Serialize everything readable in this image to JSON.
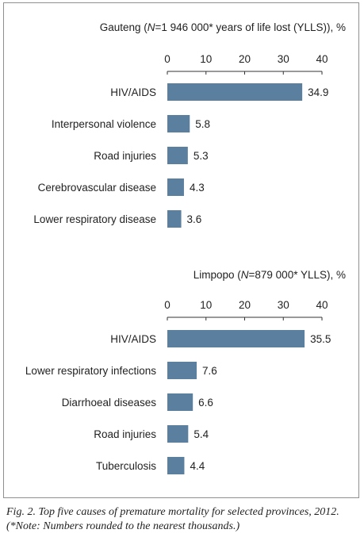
{
  "chart_data": [
    {
      "type": "bar",
      "title_prefix": "Gauteng (",
      "title_n": "N",
      "title_suffix": "=1 946 000* years of life lost (YLLS)), %",
      "xlim": [
        0,
        40
      ],
      "ticks": [
        "0",
        "10",
        "20",
        "30",
        "40"
      ],
      "categories": [
        "HIV/AIDS",
        "Interpersonal violence",
        "Road injuries",
        "Cerebrovascular disease",
        "Lower respiratory disease"
      ],
      "values": [
        34.9,
        5.8,
        5.3,
        4.3,
        3.6
      ],
      "value_labels": [
        "34.9",
        "5.8",
        "5.3",
        "4.3",
        "3.6"
      ]
    },
    {
      "type": "bar",
      "title_prefix": "Limpopo (",
      "title_n": "N",
      "title_suffix": "=879 000* YLLS), %",
      "xlim": [
        0,
        40
      ],
      "ticks": [
        "0",
        "10",
        "20",
        "30",
        "40"
      ],
      "categories": [
        "HIV/AIDS",
        "Lower respiratory infections",
        "Diarrhoeal diseases",
        "Road injuries",
        "Tuberculosis"
      ],
      "values": [
        35.5,
        7.6,
        6.6,
        5.4,
        4.4
      ],
      "value_labels": [
        "35.5",
        "7.6",
        "6.6",
        "5.4",
        "4.4"
      ]
    }
  ],
  "colors": {
    "bar": "#5b7f9e",
    "axis": "#333333"
  },
  "caption": {
    "line1": "Fig. 2. Top five causes of premature mortality for selected provinces, 2012.",
    "line2": "(*Note: Numbers rounded to the nearest thousands.)"
  }
}
